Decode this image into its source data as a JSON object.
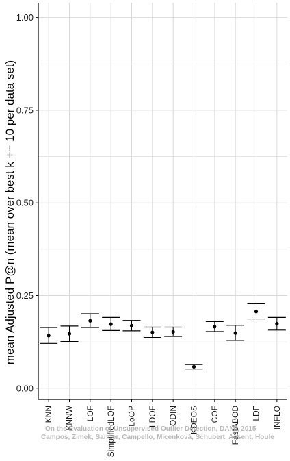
{
  "chart_data": {
    "type": "errorbar",
    "title": "",
    "xlabel": "",
    "ylabel": "mean Adjusted P@n (mean over best k +− 10 per data set)",
    "ylim": [
      -0.03,
      1.04
    ],
    "yticks": [
      0.0,
      0.25,
      0.5,
      0.75,
      1.0
    ],
    "ytick_labels": [
      "0.00",
      "0.25",
      "0.50",
      "0.75",
      "1.00"
    ],
    "grid": true,
    "categories": [
      "KNN",
      "KNNW",
      "LOF",
      "SimplifiedLOF",
      "LoOP",
      "LDOF",
      "ODIN",
      "KDEOS",
      "COF",
      "FastABOD",
      "LDF",
      "INFLO"
    ],
    "values": [
      0.142,
      0.147,
      0.182,
      0.173,
      0.169,
      0.151,
      0.152,
      0.058,
      0.166,
      0.149,
      0.207,
      0.174
    ],
    "lower": [
      0.121,
      0.126,
      0.164,
      0.156,
      0.155,
      0.137,
      0.14,
      0.052,
      0.153,
      0.129,
      0.187,
      0.157
    ],
    "upper": [
      0.164,
      0.168,
      0.201,
      0.191,
      0.183,
      0.165,
      0.165,
      0.064,
      0.18,
      0.17,
      0.228,
      0.191
    ]
  },
  "watermark": {
    "line1": "On the Evaluation of Unsupervised Outlier Detection, DAMI, 2015",
    "line2": "Campos, Zimek, Sander, Campello, Micenková, Schubert, Assent, Houle"
  },
  "colors": {
    "grid": "#d9d9d9",
    "axis": "#000000",
    "errorbar": "#000000",
    "point": "#000000"
  }
}
